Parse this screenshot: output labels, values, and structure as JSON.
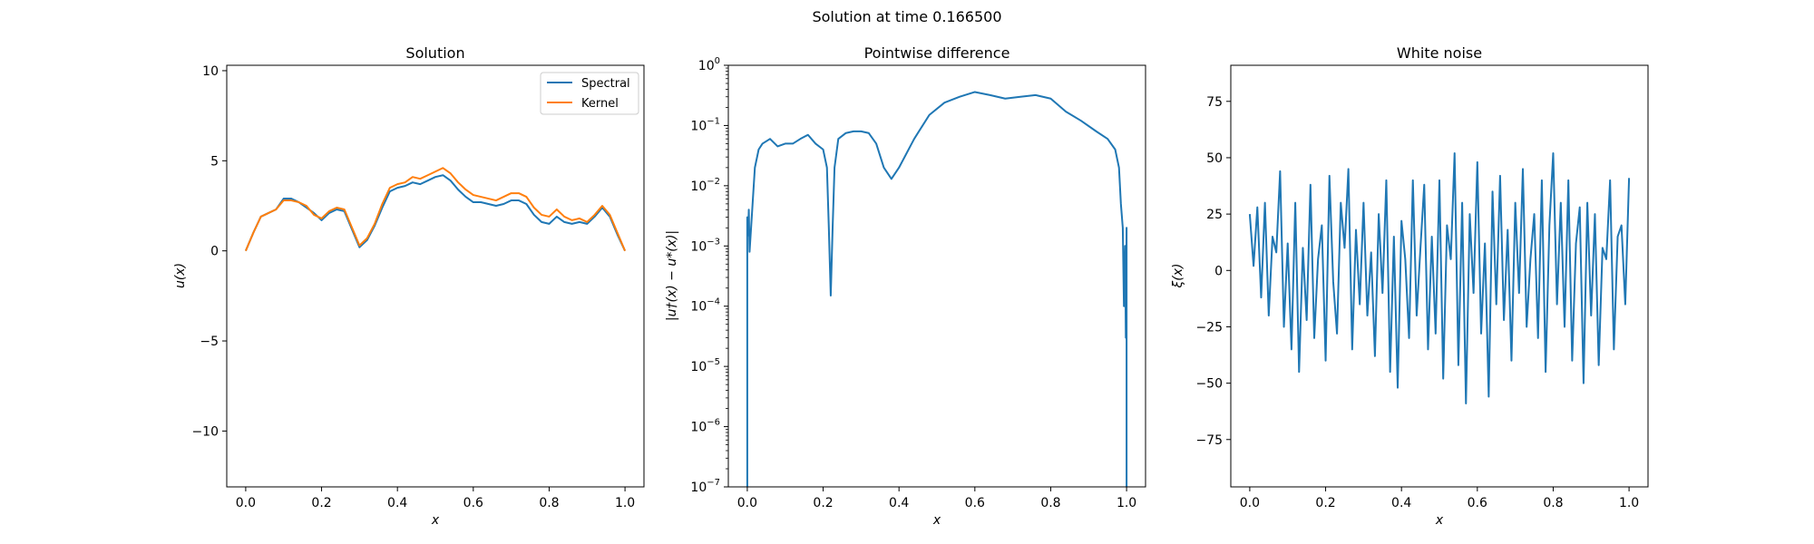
{
  "figure": {
    "suptitle": "Solution at time 0.166500"
  },
  "colors": {
    "spectral": "#1f77b4",
    "kernel": "#ff7f0e",
    "noise": "#1f77b4"
  },
  "chart_data": [
    {
      "type": "line",
      "title": "Solution",
      "xlabel": "x",
      "ylabel": "u(x)",
      "xlim": [
        -0.05,
        1.05
      ],
      "ylim": [
        -13.1,
        10.3
      ],
      "xticks": [
        0.0,
        0.2,
        0.4,
        0.6,
        0.8,
        1.0
      ],
      "xtick_labels": [
        "0.0",
        "0.2",
        "0.4",
        "0.6",
        "0.8",
        "1.0"
      ],
      "yticks": [
        10,
        5,
        0,
        -5,
        -10
      ],
      "ytick_labels": [
        "10",
        "5",
        "0",
        "−5",
        "−10"
      ],
      "legend": "upper right",
      "series": [
        {
          "name": "Spectral",
          "x": [
            0,
            0.02,
            0.04,
            0.06,
            0.08,
            0.1,
            0.12,
            0.14,
            0.16,
            0.18,
            0.2,
            0.22,
            0.24,
            0.26,
            0.28,
            0.3,
            0.32,
            0.34,
            0.36,
            0.38,
            0.4,
            0.42,
            0.44,
            0.46,
            0.48,
            0.5,
            0.52,
            0.54,
            0.56,
            0.58,
            0.6,
            0.62,
            0.64,
            0.66,
            0.68,
            0.7,
            0.72,
            0.74,
            0.76,
            0.78,
            0.8,
            0.82,
            0.84,
            0.86,
            0.88,
            0.9,
            0.92,
            0.94,
            0.96,
            0.98,
            1.0
          ],
          "y": [
            0,
            1.0,
            1.9,
            2.1,
            2.3,
            2.9,
            2.9,
            2.7,
            2.4,
            2.1,
            1.7,
            2.1,
            2.3,
            2.2,
            1.2,
            0.2,
            0.6,
            1.4,
            2.4,
            3.3,
            3.5,
            3.6,
            3.8,
            3.7,
            3.9,
            4.1,
            4.2,
            3.9,
            3.4,
            3.0,
            2.7,
            2.7,
            2.6,
            2.5,
            2.6,
            2.8,
            2.8,
            2.6,
            2.0,
            1.6,
            1.5,
            1.9,
            1.6,
            1.5,
            1.6,
            1.5,
            1.9,
            2.4,
            1.9,
            0.9,
            0
          ]
        },
        {
          "name": "Kernel",
          "x": [
            0,
            0.02,
            0.04,
            0.06,
            0.08,
            0.1,
            0.12,
            0.14,
            0.16,
            0.18,
            0.2,
            0.22,
            0.24,
            0.26,
            0.28,
            0.3,
            0.32,
            0.34,
            0.36,
            0.38,
            0.4,
            0.42,
            0.44,
            0.46,
            0.48,
            0.5,
            0.52,
            0.54,
            0.56,
            0.58,
            0.6,
            0.62,
            0.64,
            0.66,
            0.68,
            0.7,
            0.72,
            0.74,
            0.76,
            0.78,
            0.8,
            0.82,
            0.84,
            0.86,
            0.88,
            0.9,
            0.92,
            0.94,
            0.96,
            0.98,
            1.0
          ],
          "y": [
            0,
            1.0,
            1.9,
            2.1,
            2.3,
            2.8,
            2.8,
            2.7,
            2.5,
            2.0,
            1.8,
            2.2,
            2.4,
            2.3,
            1.3,
            0.3,
            0.7,
            1.5,
            2.6,
            3.5,
            3.7,
            3.8,
            4.1,
            4.0,
            4.2,
            4.4,
            4.6,
            4.3,
            3.8,
            3.4,
            3.1,
            3.0,
            2.9,
            2.8,
            3.0,
            3.2,
            3.2,
            3.0,
            2.4,
            2.0,
            1.9,
            2.3,
            1.9,
            1.7,
            1.8,
            1.6,
            2.0,
            2.5,
            2.0,
            1.0,
            0
          ]
        }
      ]
    },
    {
      "type": "line",
      "title": "Pointwise difference",
      "xlabel": "x",
      "ylabel": "|u†(x) − u*(x)|",
      "xscale": "linear",
      "yscale": "log",
      "xlim": [
        -0.05,
        1.05
      ],
      "ylim": [
        1e-07,
        1
      ],
      "xticks": [
        0.0,
        0.2,
        0.4,
        0.6,
        0.8,
        1.0
      ],
      "xtick_labels": [
        "0.0",
        "0.2",
        "0.4",
        "0.6",
        "0.8",
        "1.0"
      ],
      "yticks": [
        1,
        0.1,
        0.01,
        0.001,
        0.0001,
        1e-05,
        1e-06,
        1e-07
      ],
      "ytick_labels": [
        {
          "base": "10",
          "exp": "0"
        },
        {
          "base": "10",
          "exp": "−1"
        },
        {
          "base": "10",
          "exp": "−2"
        },
        {
          "base": "10",
          "exp": "−3"
        },
        {
          "base": "10",
          "exp": "−4"
        },
        {
          "base": "10",
          "exp": "−5"
        },
        {
          "base": "10",
          "exp": "−6"
        },
        {
          "base": "10",
          "exp": "−7"
        }
      ],
      "series": [
        {
          "x": [
            0.0,
            0.0,
            0.002,
            0.004,
            0.006,
            0.01,
            0.02,
            0.03,
            0.04,
            0.06,
            0.08,
            0.1,
            0.12,
            0.14,
            0.16,
            0.18,
            0.2,
            0.21,
            0.215,
            0.22,
            0.225,
            0.23,
            0.24,
            0.26,
            0.28,
            0.3,
            0.32,
            0.34,
            0.36,
            0.38,
            0.4,
            0.44,
            0.48,
            0.52,
            0.56,
            0.6,
            0.64,
            0.68,
            0.72,
            0.76,
            0.8,
            0.84,
            0.88,
            0.92,
            0.95,
            0.97,
            0.98,
            0.985,
            0.99,
            0.993,
            0.996,
            0.998,
            1.0,
            1.0
          ],
          "y": [
            1e-07,
            0.003,
            0.0015,
            0.004,
            0.0008,
            0.002,
            0.02,
            0.04,
            0.05,
            0.06,
            0.045,
            0.05,
            0.05,
            0.06,
            0.07,
            0.05,
            0.04,
            0.02,
            0.002,
            0.00015,
            0.002,
            0.02,
            0.06,
            0.075,
            0.08,
            0.08,
            0.075,
            0.05,
            0.02,
            0.013,
            0.02,
            0.06,
            0.15,
            0.24,
            0.3,
            0.36,
            0.32,
            0.28,
            0.3,
            0.32,
            0.28,
            0.17,
            0.12,
            0.08,
            0.06,
            0.04,
            0.02,
            0.005,
            0.002,
            0.0001,
            0.001,
            3e-05,
            0.002,
            1e-07
          ]
        }
      ]
    },
    {
      "type": "line",
      "title": "White noise",
      "xlabel": "x",
      "ylabel": "ξ(x)",
      "xlim": [
        -0.05,
        1.05
      ],
      "ylim": [
        -96,
        91
      ],
      "xticks": [
        0.0,
        0.2,
        0.4,
        0.6,
        0.8,
        1.0
      ],
      "xtick_labels": [
        "0.0",
        "0.2",
        "0.4",
        "0.6",
        "0.8",
        "1.0"
      ],
      "yticks": [
        75,
        50,
        25,
        0,
        -25,
        -50,
        -75
      ],
      "ytick_labels": [
        "75",
        "50",
        "25",
        "0",
        "−25",
        "−50",
        "−75"
      ],
      "series": [
        {
          "x": [
            0.0,
            0.01,
            0.02,
            0.03,
            0.04,
            0.05,
            0.06,
            0.07,
            0.08,
            0.09,
            0.1,
            0.11,
            0.12,
            0.13,
            0.14,
            0.15,
            0.16,
            0.17,
            0.18,
            0.19,
            0.2,
            0.21,
            0.22,
            0.23,
            0.24,
            0.25,
            0.26,
            0.27,
            0.28,
            0.29,
            0.3,
            0.31,
            0.32,
            0.33,
            0.34,
            0.35,
            0.36,
            0.37,
            0.38,
            0.39,
            0.4,
            0.41,
            0.42,
            0.43,
            0.44,
            0.45,
            0.46,
            0.47,
            0.48,
            0.49,
            0.5,
            0.51,
            0.52,
            0.53,
            0.54,
            0.55,
            0.56,
            0.57,
            0.58,
            0.59,
            0.6,
            0.61,
            0.62,
            0.63,
            0.64,
            0.65,
            0.66,
            0.67,
            0.68,
            0.69,
            0.7,
            0.71,
            0.72,
            0.73,
            0.74,
            0.75,
            0.76,
            0.77,
            0.78,
            0.79,
            0.8,
            0.81,
            0.82,
            0.83,
            0.84,
            0.85,
            0.86,
            0.87,
            0.88,
            0.89,
            0.9,
            0.91,
            0.92,
            0.93,
            0.94,
            0.95,
            0.96,
            0.97,
            0.98,
            0.99,
            1.0
          ],
          "y": [
            25,
            2,
            28,
            -12,
            30,
            -20,
            15,
            8,
            44,
            -25,
            12,
            -35,
            30,
            -45,
            10,
            -22,
            38,
            -30,
            5,
            20,
            -40,
            42,
            -5,
            -28,
            30,
            10,
            45,
            -35,
            18,
            -15,
            30,
            -20,
            8,
            -38,
            25,
            -10,
            40,
            -45,
            15,
            -52,
            22,
            5,
            -30,
            40,
            -20,
            10,
            38,
            -35,
            15,
            -28,
            40,
            -48,
            20,
            5,
            52,
            -42,
            30,
            -59,
            25,
            -10,
            48,
            -28,
            12,
            -56,
            35,
            -15,
            42,
            -22,
            18,
            -40,
            30,
            -10,
            45,
            -25,
            5,
            25,
            -30,
            40,
            -45,
            20,
            52,
            -15,
            30,
            -25,
            40,
            -40,
            12,
            28,
            -50,
            30,
            -20,
            25,
            -42,
            10,
            5,
            40,
            -35,
            15,
            20,
            -15,
            41
          ]
        }
      ]
    }
  ]
}
